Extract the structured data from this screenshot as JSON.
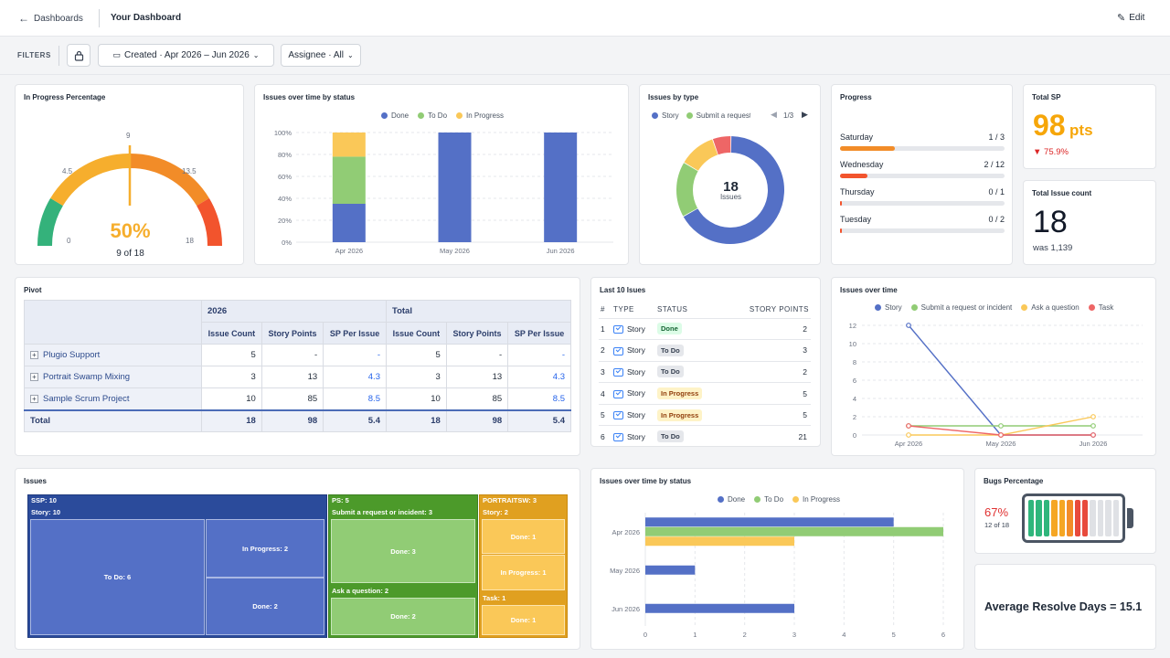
{
  "topbar": {
    "back_label": "Dashboards",
    "title": "Your Dashboard",
    "edit_label": "Edit"
  },
  "filters": {
    "label": "FILTERS",
    "created": "Created · Apr 2026 – Jun 2026",
    "assignee": "Assignee · All"
  },
  "in_progress": {
    "title": "In Progress Percentage",
    "percent_label": "50%",
    "sub": "9 of 18",
    "ticks": [
      "0",
      "4.5",
      "9",
      "13.5",
      "18"
    ],
    "value": 9,
    "max": 18
  },
  "status_over_time": {
    "title": "Issues over time by status",
    "legend": [
      "Done",
      "To Do",
      "In Progress"
    ],
    "y_ticks": [
      "100%",
      "80%",
      "60%",
      "40%",
      "20%",
      "0%"
    ],
    "x_labels": [
      "Apr 2026",
      "May 2026",
      "Jun 2026"
    ]
  },
  "issues_by_type": {
    "title": "Issues by type",
    "legend": [
      "Story",
      "Submit a request or incident"
    ],
    "page": "1/3",
    "total": "18",
    "total_label": "Issues"
  },
  "progress": {
    "title": "Progress",
    "rows": [
      {
        "label": "Saturday",
        "value": "1 / 3",
        "fraction": 0.333
      },
      {
        "label": "Wednesday",
        "value": "2 / 12",
        "fraction": 0.167
      },
      {
        "label": "Thursday",
        "value": "0 / 1",
        "fraction": 0
      },
      {
        "label": "Tuesday",
        "value": "0 / 2",
        "fraction": 0
      }
    ]
  },
  "total_sp": {
    "title": "Total SP",
    "value": "98",
    "unit": "pts",
    "change": "▼ 75.9%"
  },
  "total_issue": {
    "title": "Total Issue count",
    "value": "18",
    "was": "was 1,139"
  },
  "pivot": {
    "title": "Pivot",
    "group_headers": [
      "2026",
      "Total"
    ],
    "col_headers": [
      "Issue Count",
      "Story Points",
      "SP Per Issue",
      "Issue Count",
      "Story Points",
      "SP Per Issue"
    ],
    "rows": [
      {
        "label": "Plugio Support",
        "cells": [
          "5",
          "-",
          "-",
          "5",
          "-",
          "-"
        ]
      },
      {
        "label": "Portrait Swamp Mixing",
        "cells": [
          "3",
          "13",
          "4.3",
          "3",
          "13",
          "4.3"
        ]
      },
      {
        "label": "Sample Scrum Project",
        "cells": [
          "10",
          "85",
          "8.5",
          "10",
          "85",
          "8.5"
        ]
      }
    ],
    "total": {
      "label": "Total",
      "cells": [
        "18",
        "98",
        "5.4",
        "18",
        "98",
        "5.4"
      ]
    }
  },
  "last10": {
    "title": "Last 10 Isues",
    "headers": [
      "#",
      "TYPE",
      "STATUS",
      "STORY POINTS"
    ],
    "rows": [
      {
        "n": "1",
        "type": "Story",
        "status": "Done",
        "points": "2"
      },
      {
        "n": "2",
        "type": "Story",
        "status": "To Do",
        "points": "3"
      },
      {
        "n": "3",
        "type": "Story",
        "status": "To Do",
        "points": "2"
      },
      {
        "n": "4",
        "type": "Story",
        "status": "In Progress",
        "points": "5"
      },
      {
        "n": "5",
        "type": "Story",
        "status": "In Progress",
        "points": "5"
      },
      {
        "n": "6",
        "type": "Story",
        "status": "To Do",
        "points": "21"
      }
    ]
  },
  "issues_over_time": {
    "title": "Issues over time",
    "legend": [
      "Story",
      "Submit a request or incident",
      "Ask a question",
      "Task"
    ],
    "y_ticks": [
      "12",
      "10",
      "8",
      "6",
      "4",
      "2",
      "0"
    ],
    "x_labels": [
      "Apr 2026",
      "May 2026",
      "Jun 2026"
    ]
  },
  "treemap": {
    "title": "Issues",
    "ssp": "SSP: 10",
    "ssp_story": "Story: 10",
    "ssp_todo": "To Do: 6",
    "ssp_prog": "In Progress: 2",
    "ssp_done": "Done: 2",
    "ps": "PS: 5",
    "ps_sub": "Submit a request or incident: 3",
    "ps_sub_done": "Done: 3",
    "ps_ask": "Ask a question: 2",
    "ps_ask_done": "Done: 2",
    "pt": "PORTRAITSW: 3",
    "pt_story": "Story: 2",
    "pt_story_done": "Done: 1",
    "pt_story_prog": "In Progress: 1",
    "pt_task": "Task: 1",
    "pt_task_done": "Done: 1"
  },
  "status_bar": {
    "title": "Issues over time by status",
    "legend": [
      "Done",
      "To Do",
      "In Progress"
    ],
    "x_ticks": [
      "0",
      "1",
      "2",
      "3",
      "4",
      "5",
      "6"
    ],
    "y_labels": [
      "Apr 2026",
      "May 2026",
      "Jun 2026"
    ]
  },
  "bugs": {
    "title": "Bugs Percentage",
    "percent": "67%",
    "sub": "12 of 18",
    "fraction": 0.67
  },
  "resolve": {
    "text": "Average Resolve Days = 15.1"
  },
  "chart_data": [
    {
      "type": "bar",
      "title": "Issues over time by status",
      "categories": [
        "Apr 2026",
        "May 2026",
        "Jun 2026"
      ],
      "series": [
        {
          "name": "Done",
          "values": [
            35,
            100,
            100
          ]
        },
        {
          "name": "To Do",
          "values": [
            43,
            0,
            0
          ]
        },
        {
          "name": "In Progress",
          "values": [
            22,
            0,
            0
          ]
        }
      ],
      "ylim": [
        0,
        100
      ],
      "stacked": true
    },
    {
      "type": "pie",
      "title": "Issues by type",
      "labels": [
        "Story",
        "Submit a request or incident",
        "Ask a question",
        "Task"
      ],
      "values": [
        12,
        3,
        2,
        1
      ]
    },
    {
      "type": "line",
      "title": "Issues over time",
      "categories": [
        "Apr 2026",
        "May 2026",
        "Jun 2026"
      ],
      "series": [
        {
          "name": "Story",
          "values": [
            12,
            0,
            0
          ]
        },
        {
          "name": "Submit a request or incident",
          "values": [
            1,
            1,
            1
          ]
        },
        {
          "name": "Ask a question",
          "values": [
            0,
            0,
            2
          ]
        },
        {
          "name": "Task",
          "values": [
            1,
            0,
            0
          ]
        }
      ],
      "ylim": [
        0,
        12
      ]
    },
    {
      "type": "bar",
      "orientation": "horizontal",
      "title": "Issues over time by status",
      "categories": [
        "Apr 2026",
        "May 2026",
        "Jun 2026"
      ],
      "series": [
        {
          "name": "Done",
          "values": [
            5,
            1,
            3
          ]
        },
        {
          "name": "To Do",
          "values": [
            6,
            0,
            0
          ]
        },
        {
          "name": "In Progress",
          "values": [
            3,
            0,
            0
          ]
        }
      ],
      "xlim": [
        0,
        6
      ]
    }
  ]
}
